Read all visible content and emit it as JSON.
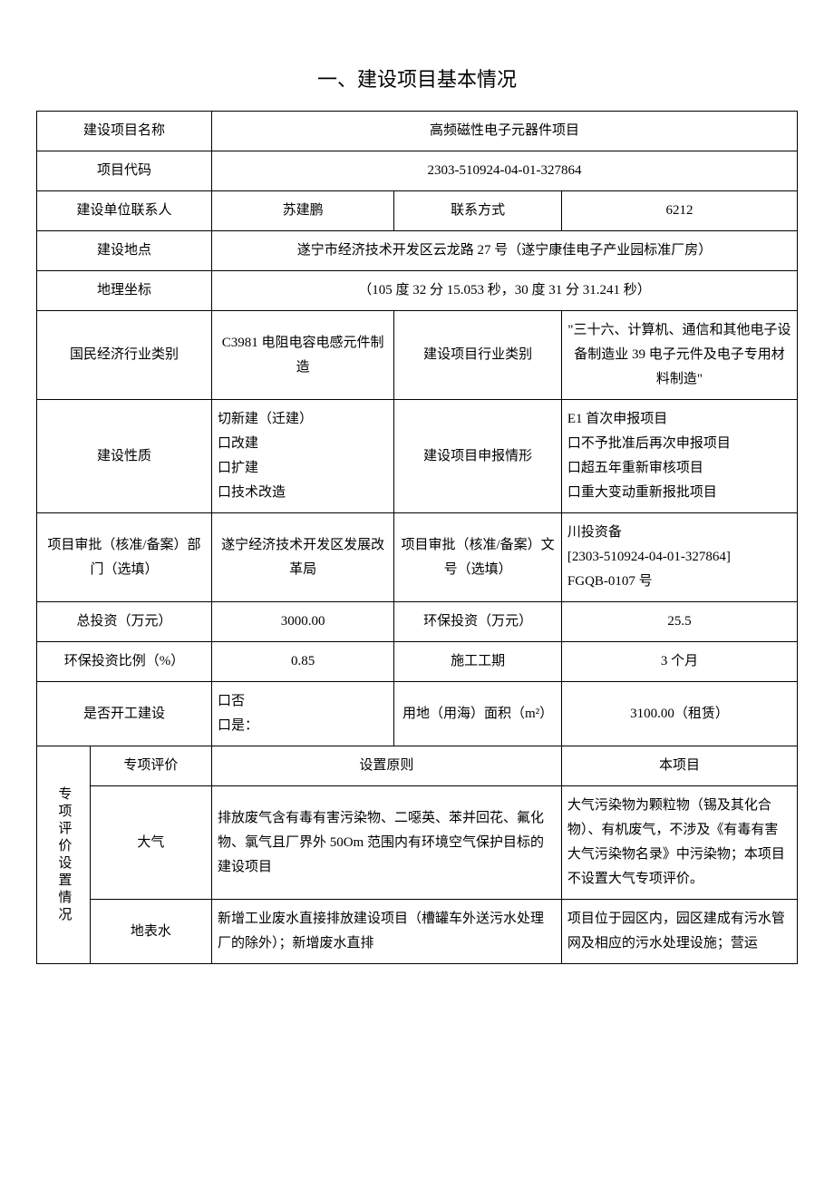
{
  "title": "一、建设项目基本情况",
  "table": {
    "rows": [
      {
        "label": "建设项目名称",
        "value": "高频磁性电子元器件项目",
        "span": 3
      },
      {
        "label": "项目代码",
        "value": "2303-510924-04-01-327864",
        "span": 3
      },
      {
        "label": "建设单位联系人",
        "v1": "苏建鹏",
        "label2": "联系方式",
        "v2": "6212"
      },
      {
        "label": "建设地点",
        "value": "遂宁市经济技术开发区云龙路 27 号（遂宁康佳电子产业园标准厂房）",
        "span": 3
      },
      {
        "label": "地理坐标",
        "value": "（105 度 32 分 15.053 秒，30 度 31 分 31.241 秒）",
        "span": 3
      },
      {
        "label": "国民经济行业类别",
        "v1": "C3981 电阻电容电感元件制造",
        "label2": "建设项目行业类别",
        "v2": "\"三十六、计算机、通信和其他电子设备制造业 39 电子元件及电子专用材料制造\""
      },
      {
        "label": "建设性质",
        "v1": "切新建（迁建）\n口改建\n口扩建\n口技术改造",
        "label2": "建设项目申报情形",
        "v2": "E1 首次申报项目\n口不予批准后再次申报项目\n口超五年重新审核项目\n口重大变动重新报批项目"
      },
      {
        "label": "项目审批（核准/备案）部门（选填）",
        "v1": "遂宁经济技术开发区发展改革局",
        "label2": "项目审批（核准/备案）文号（选填）",
        "v2": "川投资备\n[2303-510924-04-01-327864]\nFGQB-0107 号"
      },
      {
        "label": "总投资（万元）",
        "v1": "3000.00",
        "label2": "环保投资（万元）",
        "v2": "25.5"
      },
      {
        "label": "环保投资比例（%）",
        "v1": "0.85",
        "label2": "施工工期",
        "v2": "3 个月"
      },
      {
        "label": "是否开工建设",
        "v1": "口否\n口是：",
        "label2": "用地（用海）面积（m²）",
        "v2": "3100.00（租赁）"
      }
    ],
    "special": {
      "groupLabel": "专项评价设置情况",
      "headerRow": {
        "c1": "专项评价",
        "c2": "设置原则",
        "c3": "本项目"
      },
      "rows": [
        {
          "c1": "大气",
          "c2": "排放废气含有毒有害污染物、二噁英、苯并回花、氟化物、氯气且厂界外 50Om 范围内有环境空气保护目标的建设项目",
          "c3": "大气污染物为颗粒物（锡及其化合物）、有机废气，不涉及《有毒有害大气污染物名录》中污染物；本项目不设置大气专项评价。"
        },
        {
          "c1": "地表水",
          "c2": "新增工业废水直接排放建设项目（槽罐车外送污水处理厂的除外）；新增废水直排",
          "c3": "项目位于园区内，园区建成有污水管网及相应的污水处理设施；营运"
        }
      ]
    }
  },
  "layout": {
    "colWidths": [
      "7%",
      "16%",
      "24%",
      "22%",
      "31%"
    ]
  }
}
